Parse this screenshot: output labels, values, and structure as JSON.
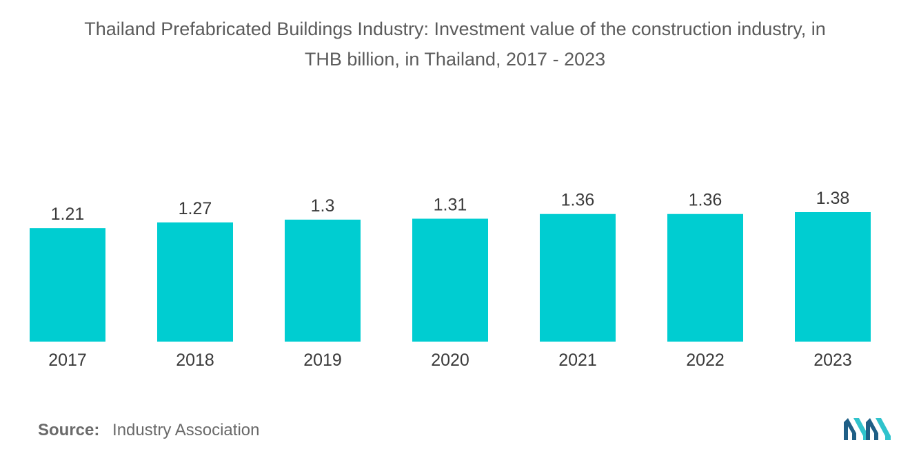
{
  "chart_data": {
    "type": "bar",
    "title_line1": "Thailand Prefabricated Buildings Industry: Investment value of the construction industry, in",
    "title_line2": "THB billion, in Thailand, 2017 - 2023",
    "categories": [
      "2017",
      "2018",
      "2019",
      "2020",
      "2021",
      "2022",
      "2023"
    ],
    "values": [
      1.21,
      1.27,
      1.3,
      1.31,
      1.36,
      1.36,
      1.38
    ],
    "data_labels": [
      "1.21",
      "1.27",
      "1.3",
      "1.31",
      "1.36",
      "1.36",
      "1.38"
    ],
    "xlabel": "",
    "ylabel": "",
    "ylim": [
      0,
      1.38
    ],
    "grid": false,
    "bar_color": "#00cdd1"
  },
  "footer": {
    "source_label": "Source:",
    "source_text": "Industry Association"
  },
  "colors": {
    "title": "#5b5b5b",
    "labels": "#3a3a3a",
    "logo_dark": "#1f5f86",
    "logo_light": "#30c3cc"
  },
  "logo": {
    "icon": "mordor-intelligence-logo-icon"
  }
}
